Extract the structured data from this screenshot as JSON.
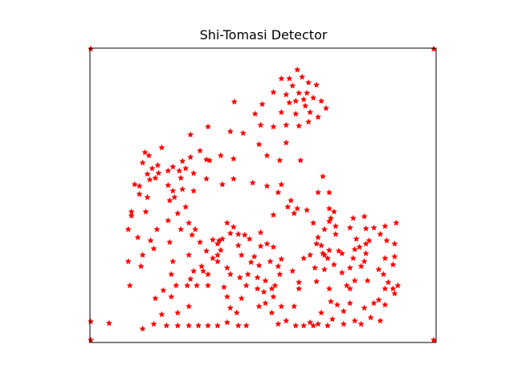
{
  "chart_data": {
    "type": "scatter",
    "title": "Shi-Tomasi Detector",
    "xlabel": "",
    "ylabel": "",
    "xlim": [
      0,
      434
    ],
    "ylim": [
      0,
      367
    ],
    "y_inverted": true,
    "axis_ticks_visible": false,
    "grid": false,
    "marker": "*",
    "marker_color": "#ff0000",
    "series": [
      {
        "points": [
          [
            1,
            1
          ],
          [
            431,
            1
          ],
          [
            1,
            341
          ],
          [
            1,
            364
          ],
          [
            431,
            364
          ],
          [
            24,
            343
          ],
          [
            260,
            27
          ],
          [
            240,
            38
          ],
          [
            250,
            38
          ],
          [
            266,
            36
          ],
          [
            254,
            47
          ],
          [
            274,
            43
          ],
          [
            284,
            46
          ],
          [
            246,
            58
          ],
          [
            262,
            56
          ],
          [
            272,
            56
          ],
          [
            280,
            62
          ],
          [
            258,
            66
          ],
          [
            268,
            64
          ],
          [
            290,
            66
          ],
          [
            230,
            55
          ],
          [
            250,
            68
          ],
          [
            270,
            72
          ],
          [
            296,
            75
          ],
          [
            240,
            80
          ],
          [
            258,
            82
          ],
          [
            276,
            80
          ],
          [
            286,
            86
          ],
          [
            216,
            70
          ],
          [
            207,
            82
          ],
          [
            181,
            67
          ],
          [
            246,
            96
          ],
          [
            262,
            97
          ],
          [
            274,
            92
          ],
          [
            214,
            96
          ],
          [
            230,
            98
          ],
          [
            246,
            118
          ],
          [
            238,
            140
          ],
          [
            148,
            98
          ],
          [
            192,
            106
          ],
          [
            212,
            120
          ],
          [
            264,
            140
          ],
          [
            90,
            124
          ],
          [
            69,
            130
          ],
          [
            85,
            146
          ],
          [
            78,
            150
          ],
          [
            126,
            108
          ],
          [
            176,
            104
          ],
          [
            180,
            138
          ],
          [
            116,
            141
          ],
          [
            74,
            134
          ],
          [
            66,
            143
          ],
          [
            146,
            139
          ],
          [
            164,
            134
          ],
          [
            126,
            136
          ],
          [
            138,
            128
          ],
          [
            130,
            156
          ],
          [
            104,
            148
          ],
          [
            120,
            150
          ],
          [
            86,
            156
          ],
          [
            98,
            171
          ],
          [
            82,
            162
          ],
          [
            100,
            190
          ],
          [
            116,
            176
          ],
          [
            130,
            178
          ],
          [
            150,
            140
          ],
          [
            180,
            163
          ],
          [
            204,
            168
          ],
          [
            72,
            157
          ],
          [
            75,
            164
          ],
          [
            114,
            162
          ],
          [
            98,
            153
          ],
          [
            112,
            153
          ],
          [
            104,
            178
          ],
          [
            106,
            186
          ],
          [
            146,
            163
          ],
          [
            166,
            170
          ],
          [
            222,
            172
          ],
          [
            236,
            180
          ],
          [
            230,
            208
          ],
          [
            252,
            190
          ],
          [
            56,
            170
          ],
          [
            52,
            204
          ],
          [
            72,
            186
          ],
          [
            70,
            204
          ],
          [
            62,
            182
          ],
          [
            62,
            172
          ],
          [
            52,
            209
          ],
          [
            48,
            226
          ],
          [
            98,
            215
          ],
          [
            114,
            226
          ],
          [
            120,
            198
          ],
          [
            128,
            233
          ],
          [
            124,
            218
          ],
          [
            110,
            206
          ],
          [
            132,
            226
          ],
          [
            138,
            242
          ],
          [
            142,
            278
          ],
          [
            154,
            239
          ],
          [
            124,
            258
          ],
          [
            162,
            240
          ],
          [
            146,
            253
          ],
          [
            186,
            246
          ],
          [
            160,
            244
          ],
          [
            190,
            258
          ],
          [
            186,
            232
          ],
          [
            176,
            231
          ],
          [
            172,
            218
          ],
          [
            180,
            223
          ],
          [
            166,
            238
          ],
          [
            194,
            233
          ],
          [
            214,
            230
          ],
          [
            214,
            247
          ],
          [
            222,
            244
          ],
          [
            230,
            248
          ],
          [
            202,
            267
          ],
          [
            200,
            238
          ],
          [
            206,
            260
          ],
          [
            212,
            271
          ],
          [
            236,
            272
          ],
          [
            240,
            263
          ],
          [
            238,
            282
          ],
          [
            254,
            278
          ],
          [
            262,
            292
          ],
          [
            284,
            291
          ],
          [
            282,
            274
          ],
          [
            284,
            244
          ],
          [
            290,
            246
          ],
          [
            294,
            258
          ],
          [
            298,
            262
          ],
          [
            306,
            270
          ],
          [
            312,
            253
          ],
          [
            326,
            274
          ],
          [
            332,
            251
          ],
          [
            338,
            248
          ],
          [
            344,
            266
          ],
          [
            346,
            256
          ],
          [
            346,
            244
          ],
          [
            350,
            240
          ],
          [
            302,
            212
          ],
          [
            330,
            212
          ],
          [
            344,
            210
          ],
          [
            308,
            222
          ],
          [
            326,
            224
          ],
          [
            334,
            238
          ],
          [
            346,
            225
          ],
          [
            356,
            224
          ],
          [
            364,
            232
          ],
          [
            370,
            222
          ],
          [
            372,
            240
          ],
          [
            380,
            270
          ],
          [
            382,
            260
          ],
          [
            382,
            244
          ],
          [
            384,
            218
          ],
          [
            382,
            306
          ],
          [
            370,
            300
          ],
          [
            362,
            314
          ],
          [
            344,
            324
          ],
          [
            340,
            344
          ],
          [
            326,
            318
          ],
          [
            318,
            328
          ],
          [
            304,
            338
          ],
          [
            302,
            316
          ],
          [
            290,
            330
          ],
          [
            276,
            342
          ],
          [
            286,
            344
          ],
          [
            298,
            346
          ],
          [
            318,
            344
          ],
          [
            332,
            340
          ],
          [
            352,
            336
          ],
          [
            356,
            318
          ],
          [
            364,
            340
          ],
          [
            370,
            320
          ],
          [
            380,
            300
          ],
          [
            386,
            296
          ],
          [
            370,
            262
          ],
          [
            362,
            276
          ],
          [
            368,
            282
          ],
          [
            374,
            292
          ],
          [
            340,
            272
          ],
          [
            348,
            290
          ],
          [
            332,
            290
          ],
          [
            308,
            232
          ],
          [
            300,
            200
          ],
          [
            300,
            216
          ],
          [
            294,
            226
          ],
          [
            286,
            236
          ],
          [
            294,
            276
          ],
          [
            300,
            300
          ],
          [
            310,
            320
          ],
          [
            322,
            296
          ],
          [
            316,
            280
          ],
          [
            330,
            262
          ],
          [
            326,
            300
          ],
          [
            316,
            256
          ],
          [
            280,
            218
          ],
          [
            286,
            180
          ],
          [
            292,
            160
          ],
          [
            300,
            180
          ],
          [
            306,
            204
          ],
          [
            260,
            200
          ],
          [
            272,
            202
          ],
          [
            256,
            206
          ],
          [
            222,
            134
          ],
          [
            240,
            170
          ],
          [
            248,
            198
          ],
          [
            226,
            266
          ],
          [
            232,
            296
          ],
          [
            230,
            310
          ],
          [
            240,
            322
          ],
          [
            256,
            322
          ],
          [
            262,
            300
          ],
          [
            268,
            262
          ],
          [
            276,
            258
          ],
          [
            292,
            256
          ],
          [
            300,
            252
          ],
          [
            48,
            266
          ],
          [
            50,
            296
          ],
          [
            60,
            236
          ],
          [
            66,
            258
          ],
          [
            64,
            272
          ],
          [
            76,
            240
          ],
          [
            84,
            226
          ],
          [
            80,
            250
          ],
          [
            100,
            242
          ],
          [
            104,
            266
          ],
          [
            102,
            282
          ],
          [
            108,
            296
          ],
          [
            102,
            310
          ],
          [
            110,
            330
          ],
          [
            124,
            322
          ],
          [
            122,
            296
          ],
          [
            126,
            288
          ],
          [
            130,
            278
          ],
          [
            140,
            272
          ],
          [
            148,
            282
          ],
          [
            154,
            262
          ],
          [
            164,
            252
          ],
          [
            172,
            274
          ],
          [
            160,
            266
          ],
          [
            134,
            296
          ],
          [
            148,
            296
          ],
          [
            168,
            298
          ],
          [
            172,
            310
          ],
          [
            176,
            324
          ],
          [
            184,
            330
          ],
          [
            190,
            312
          ],
          [
            196,
            296
          ],
          [
            210,
            300
          ],
          [
            218,
            304
          ],
          [
            212,
            322
          ],
          [
            220,
            318
          ],
          [
            186,
            346
          ],
          [
            196,
            346
          ],
          [
            172,
            342
          ],
          [
            160,
            346
          ],
          [
            148,
            346
          ],
          [
            136,
            346
          ],
          [
            124,
            346
          ],
          [
            110,
            346
          ],
          [
            96,
            346
          ],
          [
            80,
            344
          ],
          [
            66,
            350
          ],
          [
            92,
            302
          ],
          [
            82,
            312
          ],
          [
            90,
            332
          ],
          [
            160,
            258
          ],
          [
            176,
            282
          ],
          [
            188,
            286
          ],
          [
            198,
            282
          ],
          [
            210,
            286
          ],
          [
            220,
            290
          ],
          [
            228,
            300
          ],
          [
            228,
            330
          ],
          [
            236,
            344
          ],
          [
            246,
            340
          ],
          [
            258,
            346
          ],
          [
            268,
            346
          ],
          [
            280,
            346
          ]
        ]
      }
    ]
  }
}
